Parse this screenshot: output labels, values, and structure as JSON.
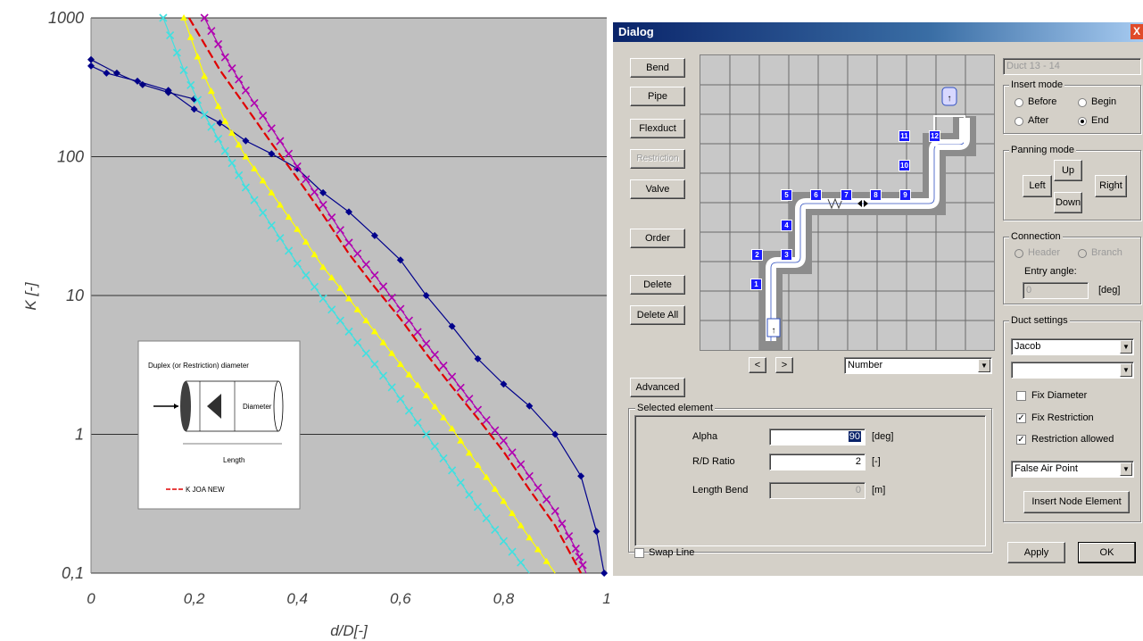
{
  "chart_data": {
    "type": "line",
    "xlabel": "d/D[-]",
    "ylabel": "K [-]",
    "xlim": [
      0,
      1
    ],
    "ylim": [
      0.1,
      1000
    ],
    "yscale": "log",
    "grid": "horizontal major",
    "x_ticks": [
      "0",
      "0,2",
      "0,4",
      "0,6",
      "0,8",
      "1"
    ],
    "y_ticks": [
      "1000",
      "100",
      "10",
      "1",
      "0,1"
    ],
    "plot_background": "#c0c0c0",
    "series": [
      {
        "color": "#00008b",
        "marker": "diamond",
        "x": [
          0,
          0.03,
          0.09,
          0.15,
          0.2,
          0.25,
          0.3,
          0.35,
          0.4,
          0.45,
          0.5,
          0.55,
          0.6,
          0.65,
          0.7,
          0.75,
          0.8,
          0.85,
          0.9,
          0.95,
          0.98,
          0.995
        ],
        "y": [
          450,
          400,
          350,
          300,
          220,
          175,
          130,
          105,
          82,
          55,
          40,
          27,
          18,
          10,
          6,
          3.5,
          2.3,
          1.6,
          1.0,
          0.5,
          0.2,
          0.1
        ]
      },
      {
        "color": "#000080",
        "marker": "diamond",
        "x": [
          0,
          0.05,
          0.1,
          0.15,
          0.2
        ],
        "y": [
          500,
          400,
          330,
          290,
          260
        ]
      },
      {
        "color": "#b000b0",
        "marker": "x",
        "x": [
          0.22,
          0.26,
          0.3,
          0.35,
          0.4,
          0.45,
          0.5,
          0.55,
          0.6,
          0.65,
          0.7,
          0.75,
          0.8,
          0.85,
          0.9,
          0.94,
          0.96
        ],
        "y": [
          1000,
          520,
          300,
          160,
          85,
          45,
          24,
          14,
          8,
          4.5,
          2.6,
          1.5,
          0.9,
          0.5,
          0.28,
          0.15,
          0.1
        ]
      },
      {
        "color": "#e00000",
        "marker": "none",
        "name": "K JOA NEW",
        "x": [
          0.19,
          0.25,
          0.3,
          0.35,
          0.4,
          0.45,
          0.5,
          0.55,
          0.6,
          0.65,
          0.7,
          0.75,
          0.8,
          0.85,
          0.9,
          0.95
        ],
        "y": [
          1000,
          420,
          230,
          125,
          70,
          38,
          20,
          11.5,
          6.8,
          3.8,
          2.2,
          1.3,
          0.75,
          0.4,
          0.22,
          0.1
        ]
      },
      {
        "color": "#ffff00",
        "marker": "triangle",
        "x": [
          0.18,
          0.22,
          0.26,
          0.3,
          0.35,
          0.4,
          0.45,
          0.5,
          0.55,
          0.6,
          0.65,
          0.7,
          0.75,
          0.8,
          0.85,
          0.9
        ],
        "y": [
          1000,
          380,
          180,
          100,
          55,
          30,
          16,
          9.5,
          5.5,
          3.2,
          1.9,
          1.1,
          0.6,
          0.33,
          0.18,
          0.1
        ]
      },
      {
        "color": "#40e0e0",
        "marker": "x",
        "x": [
          0.14,
          0.18,
          0.22,
          0.26,
          0.3,
          0.35,
          0.4,
          0.45,
          0.5,
          0.55,
          0.6,
          0.65,
          0.7,
          0.75,
          0.8,
          0.85
        ],
        "y": [
          1000,
          420,
          200,
          110,
          60,
          32,
          17,
          9.5,
          5.5,
          3.2,
          1.8,
          1.0,
          0.55,
          0.3,
          0.17,
          0.1
        ]
      }
    ]
  },
  "inset": {
    "label_top": "Duplex (or Restriction) diameter",
    "label_diameter": "Diameter",
    "label_length": "Length",
    "legend_label": "K JOA NEW"
  },
  "dialog": {
    "title": "Dialog",
    "close": "X",
    "left_buttons": {
      "bend": "Bend",
      "pipe": "Pipe",
      "flexduct": "Flexduct",
      "restriction": "Restriction",
      "valve": "Valve",
      "order": "Order",
      "delete": "Delete",
      "delete_all": "Delete All",
      "advanced": "Advanced"
    },
    "nav": {
      "prev": "<",
      "next": ">"
    },
    "label_mode": "Number",
    "markers": [
      "1",
      "2",
      "3",
      "4",
      "5",
      "6",
      "7",
      "8",
      "9",
      "10",
      "11",
      "12"
    ],
    "duct_name": "Duct 13 - 14",
    "insert_mode": {
      "title": "Insert mode",
      "before": "Before",
      "begin": "Begin",
      "after": "After",
      "end": "End"
    },
    "panning": {
      "title": "Panning mode",
      "up": "Up",
      "left": "Left",
      "down": "Down",
      "right": "Right"
    },
    "connection": {
      "title": "Connection",
      "header": "Header",
      "branch": "Branch",
      "entry_angle_label": "Entry angle:",
      "entry_angle_value": "0",
      "entry_angle_unit": "[deg]"
    },
    "duct_settings": {
      "title": "Duct settings",
      "select1": "Jacob",
      "select2": "",
      "fix_diameter": "Fix Diameter",
      "fix_restriction": "Fix Restriction",
      "restriction_allowed": "Restriction allowed",
      "select3": "False Air Point",
      "insert_node": "Insert Node Element"
    },
    "selected": {
      "title": "Selected element",
      "alpha_label": "Alpha",
      "alpha_value": "90",
      "alpha_unit": "[deg]",
      "rd_label": "R/D Ratio",
      "rd_value": "2",
      "rd_unit": "[-]",
      "len_label": "Length Bend",
      "len_value": "0",
      "len_unit": "[m]"
    },
    "swap_line": "Swap Line",
    "apply": "Apply",
    "ok": "OK"
  }
}
